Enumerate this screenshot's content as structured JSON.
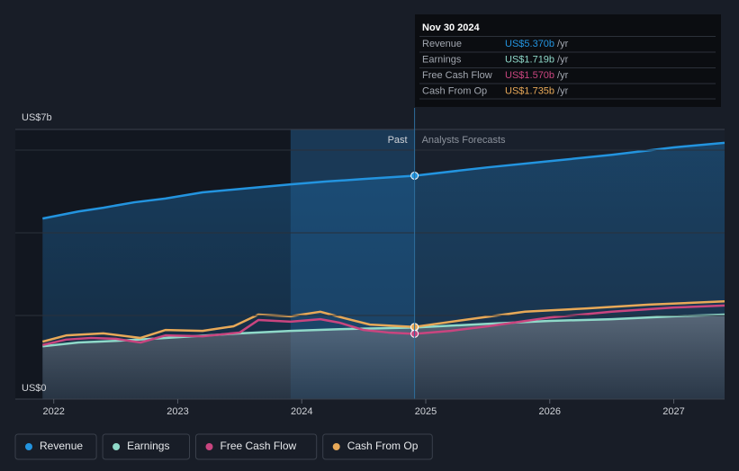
{
  "chart_data": {
    "type": "line",
    "xlim": [
      2021.69,
      2027.41
    ],
    "xticks": [
      {
        "value": 2022,
        "label": "2022"
      },
      {
        "value": 2023,
        "label": "2023"
      },
      {
        "value": 2024,
        "label": "2024"
      },
      {
        "value": 2025,
        "label": "2025"
      },
      {
        "value": 2026,
        "label": "2026"
      },
      {
        "value": 2027,
        "label": "2027"
      }
    ],
    "ylim": [
      0,
      7
    ],
    "yticks": [
      {
        "value": 0,
        "label": "US$0"
      },
      {
        "value": 7,
        "label": "US$7b"
      }
    ],
    "divider": 2024.91,
    "highlight_start": 2023.91,
    "annotations": [
      "Past",
      "Analysts Forecasts"
    ],
    "series": [
      {
        "name": "Revenue",
        "color": "#2394df",
        "x": [
          2021.91,
          2022.2,
          2022.4,
          2022.65,
          2022.9,
          2023.2,
          2023.5,
          2023.91,
          2024.2,
          2024.5,
          2024.91,
          2025.5,
          2026,
          2026.5,
          2027,
          2027.41
        ],
        "values": [
          4.34,
          4.51,
          4.6,
          4.73,
          4.82,
          4.97,
          5.05,
          5.16,
          5.23,
          5.29,
          5.37,
          5.57,
          5.72,
          5.87,
          6.05,
          6.16
        ]
      },
      {
        "name": "Earnings",
        "color": "#8fd9c9",
        "x": [
          2021.91,
          2022.2,
          2022.5,
          2022.9,
          2023.5,
          2023.91,
          2024.3,
          2024.91,
          2025.5,
          2026,
          2026.5,
          2027,
          2027.41
        ],
        "values": [
          1.27,
          1.36,
          1.4,
          1.47,
          1.58,
          1.64,
          1.68,
          1.719,
          1.81,
          1.88,
          1.92,
          1.99,
          2.03
        ]
      },
      {
        "name": "Free Cash Flow",
        "color": "#c9457f",
        "x": [
          2021.91,
          2022.1,
          2022.3,
          2022.5,
          2022.7,
          2022.9,
          2023.2,
          2023.5,
          2023.65,
          2023.91,
          2024.15,
          2024.3,
          2024.5,
          2024.7,
          2024.91,
          2025.2,
          2025.5,
          2026,
          2026.5,
          2027,
          2027.41
        ],
        "values": [
          1.3,
          1.43,
          1.47,
          1.45,
          1.36,
          1.53,
          1.51,
          1.6,
          1.9,
          1.86,
          1.92,
          1.84,
          1.66,
          1.6,
          1.57,
          1.64,
          1.75,
          1.96,
          2.1,
          2.2,
          2.25
        ]
      },
      {
        "name": "Cash From Op",
        "color": "#e8a958",
        "x": [
          2021.91,
          2022.1,
          2022.4,
          2022.7,
          2022.9,
          2023.2,
          2023.45,
          2023.65,
          2023.91,
          2024.15,
          2024.35,
          2024.55,
          2024.91,
          2025.4,
          2025.8,
          2026.3,
          2026.8,
          2027.41
        ],
        "values": [
          1.38,
          1.53,
          1.58,
          1.47,
          1.66,
          1.64,
          1.75,
          2.03,
          1.99,
          2.1,
          1.94,
          1.79,
          1.735,
          1.94,
          2.1,
          2.18,
          2.27,
          2.35
        ]
      }
    ],
    "tooltip": {
      "date": "Nov 30 2024",
      "rows": [
        {
          "name": "Revenue",
          "value": "US$5.370b",
          "unit": "/yr"
        },
        {
          "name": "Earnings",
          "value": "US$1.719b",
          "unit": "/yr"
        },
        {
          "name": "Free Cash Flow",
          "value": "US$1.570b",
          "unit": "/yr"
        },
        {
          "name": "Cash From Op",
          "value": "US$1.735b",
          "unit": "/yr"
        }
      ]
    }
  }
}
